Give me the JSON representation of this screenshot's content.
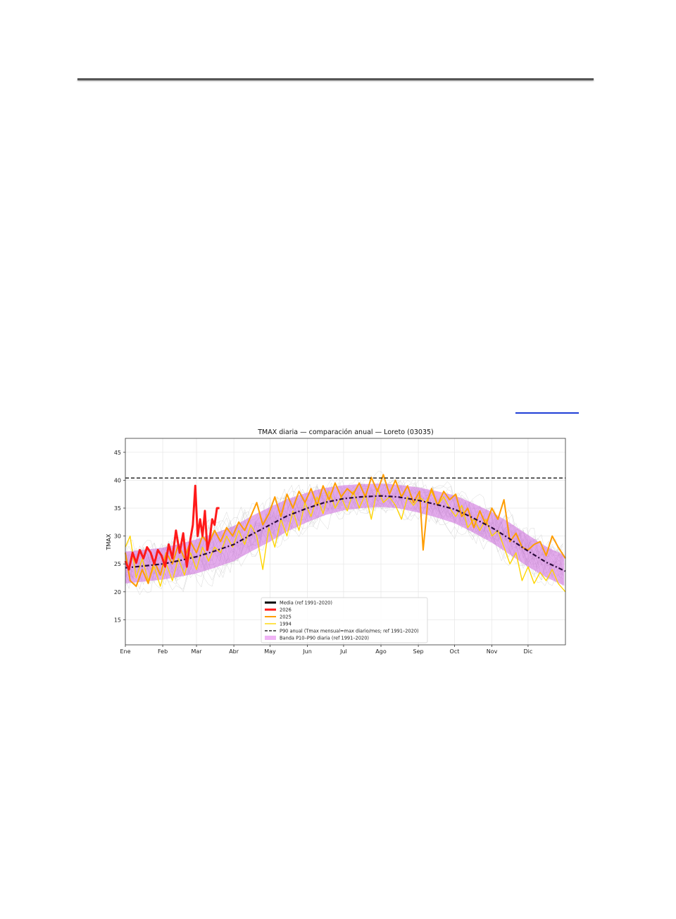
{
  "chart_data": {
    "type": "line",
    "title": "TMAX diaria — comparación anual — Loreto (03035)",
    "xlabel": "",
    "ylabel": "TMAX",
    "months": [
      "Ene",
      "Feb",
      "Mar",
      "Abr",
      "May",
      "Jun",
      "Jul",
      "Ago",
      "Sep",
      "Oct",
      "Nov",
      "Dic"
    ],
    "month_start_doy": [
      1,
      32,
      60,
      91,
      121,
      152,
      182,
      213,
      244,
      274,
      305,
      335
    ],
    "xlim": [
      1,
      366
    ],
    "ylim": [
      10.5,
      47.5
    ],
    "yticks": [
      15,
      20,
      25,
      30,
      35,
      40,
      45
    ],
    "grid": true,
    "legend_position": "lower-center",
    "p90_annual": 40.4,
    "series": [
      {
        "name": "Media (ref 1991–2020)",
        "color": "#2a0a3a",
        "style": "dashdot",
        "x": [
          1,
          15,
          32,
          46,
          60,
          75,
          91,
          105,
          121,
          135,
          152,
          166,
          182,
          196,
          213,
          227,
          244,
          258,
          274,
          288,
          305,
          319,
          335,
          350,
          366
        ],
        "y": [
          24.3,
          24.6,
          25.0,
          25.6,
          26.3,
          27.3,
          28.5,
          30.2,
          32.0,
          33.6,
          35.0,
          36.0,
          36.7,
          37.0,
          37.2,
          37.0,
          36.4,
          35.7,
          34.8,
          33.4,
          31.5,
          29.6,
          27.3,
          25.3,
          23.7
        ]
      },
      {
        "name": "2026",
        "color": "#ff1a1a",
        "style": "solid",
        "x": [
          1,
          4,
          7,
          10,
          13,
          16,
          19,
          22,
          25,
          28,
          31,
          34,
          37,
          40,
          43,
          46,
          49,
          52,
          55,
          57,
          59,
          61,
          63,
          65,
          67,
          69,
          71,
          73,
          75,
          77,
          79
        ],
        "y": [
          25.5,
          24.0,
          27.0,
          25.2,
          27.5,
          26.0,
          28.0,
          27.0,
          25.0,
          27.5,
          26.5,
          24.5,
          28.5,
          26.0,
          31.0,
          27.0,
          30.5,
          24.5,
          29.5,
          32.0,
          39.0,
          30.0,
          33.0,
          30.0,
          34.5,
          27.5,
          29.5,
          33.0,
          32.0,
          35.0,
          35.0
        ]
      },
      {
        "name": "2025",
        "color": "#ff9d00",
        "style": "solid",
        "x": [
          1,
          5,
          10,
          15,
          20,
          25,
          30,
          35,
          40,
          45,
          50,
          55,
          60,
          65,
          70,
          75,
          80,
          85,
          90,
          95,
          100,
          105,
          110,
          115,
          120,
          125,
          130,
          135,
          140,
          145,
          150,
          155,
          160,
          165,
          170,
          175,
          180,
          185,
          190,
          195,
          200,
          205,
          210,
          215,
          220,
          225,
          230,
          235,
          240,
          245,
          248,
          252,
          255,
          260,
          265,
          270,
          275,
          280,
          285,
          290,
          295,
          300,
          305,
          310,
          315,
          320,
          325,
          330,
          335,
          340,
          345,
          350,
          355,
          360,
          366
        ],
        "y": [
          27.0,
          22.0,
          21.0,
          24.0,
          21.5,
          25.5,
          23.0,
          27.0,
          25.0,
          28.5,
          26.0,
          29.0,
          27.0,
          30.0,
          28.5,
          31.0,
          29.0,
          31.5,
          30.0,
          32.5,
          31.0,
          33.5,
          36.0,
          32.0,
          34.0,
          37.0,
          33.5,
          37.5,
          35.0,
          38.0,
          36.0,
          38.5,
          35.5,
          39.0,
          36.5,
          39.5,
          37.0,
          38.5,
          37.5,
          39.5,
          37.0,
          40.5,
          38.0,
          41.0,
          37.5,
          40.0,
          37.0,
          39.0,
          36.0,
          38.0,
          27.5,
          36.5,
          38.5,
          35.5,
          38.0,
          36.5,
          37.5,
          33.5,
          35.0,
          31.5,
          34.5,
          32.0,
          35.0,
          33.0,
          36.5,
          29.0,
          30.5,
          28.0,
          27.5,
          28.5,
          29.0,
          26.5,
          30.0,
          28.0,
          26.0
        ]
      },
      {
        "name": "1994",
        "color": "#ffd500",
        "style": "solid",
        "x": [
          1,
          5,
          10,
          15,
          20,
          25,
          30,
          35,
          40,
          45,
          50,
          55,
          60,
          65,
          70,
          75,
          80,
          85,
          90,
          95,
          100,
          105,
          110,
          115,
          120,
          125,
          130,
          135,
          140,
          145,
          150,
          155,
          160,
          165,
          170,
          175,
          180,
          185,
          190,
          195,
          200,
          205,
          210,
          215,
          220,
          225,
          230,
          235,
          240,
          245,
          250,
          255,
          260,
          265,
          270,
          275,
          280,
          285,
          290,
          295,
          300,
          305,
          310,
          315,
          320,
          325,
          330,
          335,
          340,
          345,
          350,
          355,
          360,
          366
        ],
        "y": [
          28.0,
          30.0,
          22.5,
          26.0,
          22.0,
          24.5,
          21.0,
          25.0,
          22.0,
          26.0,
          23.0,
          27.0,
          24.0,
          28.0,
          25.5,
          28.0,
          27.0,
          30.0,
          28.0,
          31.0,
          28.5,
          32.0,
          30.0,
          24.0,
          31.5,
          28.0,
          33.0,
          30.0,
          34.5,
          31.0,
          36.0,
          33.5,
          37.0,
          34.0,
          38.0,
          35.0,
          37.0,
          34.5,
          38.0,
          35.0,
          37.5,
          33.0,
          38.5,
          36.0,
          37.0,
          35.5,
          33.0,
          37.0,
          35.5,
          37.0,
          36.0,
          38.0,
          35.5,
          37.0,
          35.0,
          33.5,
          35.5,
          31.5,
          33.0,
          31.0,
          33.0,
          30.0,
          31.0,
          28.0,
          25.0,
          27.0,
          22.0,
          24.5,
          21.5,
          23.5,
          22.0,
          24.0,
          21.5,
          20.0
        ]
      }
    ],
    "band": {
      "name": "Banda P10–P90 diaria (ref 1991–2020)",
      "color": "#cc66dd",
      "x": [
        1,
        15,
        32,
        46,
        60,
        75,
        91,
        105,
        121,
        135,
        152,
        166,
        182,
        196,
        213,
        227,
        244,
        258,
        274,
        288,
        305,
        319,
        335,
        350,
        366
      ],
      "p10": [
        21.5,
        21.8,
        22.2,
        22.7,
        23.3,
        24.3,
        25.5,
        27.2,
        29.0,
        30.8,
        32.5,
        33.7,
        34.6,
        35.0,
        35.2,
        35.0,
        34.2,
        33.4,
        32.3,
        30.8,
        28.8,
        26.8,
        24.5,
        22.6,
        21.0
      ],
      "p90": [
        27.2,
        27.5,
        27.9,
        28.6,
        29.4,
        30.5,
        31.8,
        33.5,
        35.2,
        36.6,
        37.8,
        38.6,
        39.1,
        39.3,
        39.4,
        39.2,
        38.7,
        38.1,
        37.3,
        36.0,
        34.3,
        32.5,
        30.2,
        28.1,
        26.5
      ]
    },
    "legend": [
      {
        "label": "Media (ref 1991–2020)",
        "kind": "solid-thick",
        "color": "#000000"
      },
      {
        "label": "2026",
        "kind": "solid-thick",
        "color": "#ff1a1a"
      },
      {
        "label": "2025",
        "kind": "solid",
        "color": "#ff9d00"
      },
      {
        "label": "1994",
        "kind": "solid-thin",
        "color": "#ffd500"
      },
      {
        "label": "P90 anual (Tmax mensual=max diario/mes; ref 1991–2020)",
        "kind": "dashed",
        "color": "#000000"
      },
      {
        "label": "Banda P10–P90 diaria (ref 1991–2020)",
        "kind": "patch",
        "color": "#f0b3f5"
      }
    ]
  }
}
